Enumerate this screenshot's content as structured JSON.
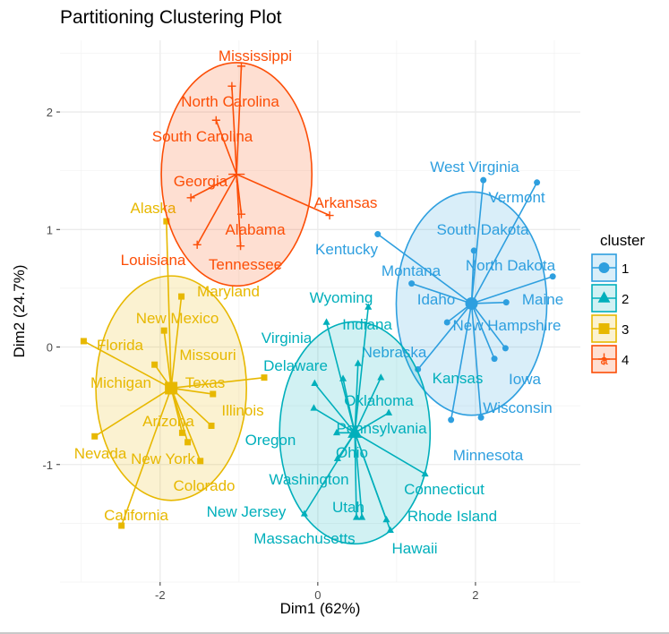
{
  "chart_data": {
    "type": "scatter",
    "title": "Partitioning Clustering Plot",
    "xlabel": "Dim1 (62%)",
    "ylabel": "Dim2 (24.7%)",
    "xlim": [
      -3.27,
      3.33
    ],
    "ylim": [
      -2.0,
      2.61
    ],
    "xticks": [
      -2,
      0,
      2
    ],
    "yticks": [
      -1,
      0,
      1,
      2
    ],
    "xtick_labels": [
      "-2",
      "0",
      "2"
    ],
    "ytick_labels": [
      "-1",
      "0",
      "1",
      "2"
    ],
    "grid": true,
    "legend": {
      "title": "cluster",
      "position": "right",
      "entries": [
        "1",
        "2",
        "3",
        "4"
      ]
    },
    "clusters": [
      {
        "id": "1",
        "color": "#2E9FDF",
        "shape": "circle",
        "center": [
          1.95,
          0.37
        ],
        "ellipse_radii": [
          0.955,
          0.95
        ],
        "points": [
          {
            "name": "West Virginia",
            "x": 2.1,
            "y": 1.42
          },
          {
            "name": "Vermont",
            "x": 2.78,
            "y": 1.4
          },
          {
            "name": "South Dakota",
            "x": 1.98,
            "y": 0.82
          },
          {
            "name": "Kentucky",
            "x": 0.76,
            "y": 0.96
          },
          {
            "name": "North Dakota",
            "x": 2.98,
            "y": 0.6
          },
          {
            "name": "Montana",
            "x": 1.19,
            "y": 0.54
          },
          {
            "name": "Maine",
            "x": 2.39,
            "y": 0.38
          },
          {
            "name": "Idaho",
            "x": 1.64,
            "y": 0.21
          },
          {
            "name": "New Hampshire",
            "x": 2.38,
            "y": -0.01
          },
          {
            "name": "Iowa",
            "x": 2.24,
            "y": -0.1
          },
          {
            "name": "Nebraska",
            "x": 1.27,
            "y": -0.19
          },
          {
            "name": "Wisconsin",
            "x": 2.07,
            "y": -0.6
          },
          {
            "name": "Minnesota",
            "x": 1.69,
            "y": -0.62
          }
        ]
      },
      {
        "id": "2",
        "color": "#00AFBB",
        "shape": "triangle",
        "center": [
          0.47,
          -0.73
        ],
        "ellipse_radii": [
          0.955,
          0.945
        ],
        "points": [
          {
            "name": "Wyoming",
            "x": 0.64,
            "y": 0.34
          },
          {
            "name": "Indiana",
            "x": 0.11,
            "y": 0.21
          },
          {
            "name": "Virginia",
            "x": 0.32,
            "y": -0.27
          },
          {
            "name": "Delaware",
            "x": -0.04,
            "y": -0.31
          },
          {
            "name": "Kansas",
            "x": 0.8,
            "y": -0.26
          },
          {
            "name": "Oklahoma",
            "x": 0.51,
            "y": -0.14
          },
          {
            "name": "Pennsylvania",
            "x": 0.9,
            "y": -0.56
          },
          {
            "name": "Oregon",
            "x": -0.05,
            "y": -0.52
          },
          {
            "name": "Ohio",
            "x": 0.24,
            "y": -0.73
          },
          {
            "name": "Washington",
            "x": 0.25,
            "y": -0.95
          },
          {
            "name": "Connecticut",
            "x": 1.36,
            "y": -1.08
          },
          {
            "name": "New Jersey",
            "x": -0.17,
            "y": -1.42
          },
          {
            "name": "Utah",
            "x": 0.49,
            "y": -1.45
          },
          {
            "name": "Massachusetts",
            "x": 0.56,
            "y": -1.45
          },
          {
            "name": "Rhode Island",
            "x": 0.87,
            "y": -1.47
          },
          {
            "name": "Hawaii",
            "x": 0.92,
            "y": -1.56
          }
        ]
      },
      {
        "id": "3",
        "color": "#E7B800",
        "shape": "square",
        "center": [
          -1.86,
          -0.35
        ],
        "ellipse_radii": [
          0.955,
          0.955
        ],
        "points": [
          {
            "name": "Alaska",
            "x": -1.92,
            "y": 1.07
          },
          {
            "name": "Maryland",
            "x": -1.73,
            "y": 0.43
          },
          {
            "name": "New Mexico",
            "x": -1.95,
            "y": 0.14
          },
          {
            "name": "Florida",
            "x": -2.97,
            "y": 0.05
          },
          {
            "name": "Michigan",
            "x": -2.07,
            "y": -0.15
          },
          {
            "name": "Missouri",
            "x": -0.68,
            "y": -0.26
          },
          {
            "name": "Texas",
            "x": -1.33,
            "y": -0.4
          },
          {
            "name": "Illinois",
            "x": -1.35,
            "y": -0.67
          },
          {
            "name": "Arizona",
            "x": -1.72,
            "y": -0.73
          },
          {
            "name": "New York",
            "x": -1.65,
            "y": -0.81
          },
          {
            "name": "Colorado",
            "x": -1.49,
            "y": -0.97
          },
          {
            "name": "Nevada",
            "x": -2.83,
            "y": -0.76
          },
          {
            "name": "California",
            "x": -2.49,
            "y": -1.52
          }
        ]
      },
      {
        "id": "4",
        "color": "#FC4E07",
        "shape": "cross",
        "center": [
          -1.03,
          1.47
        ],
        "ellipse_radii": [
          0.955,
          0.95
        ],
        "points": [
          {
            "name": "Mississippi",
            "x": -0.97,
            "y": 2.39
          },
          {
            "name": "North Carolina",
            "x": -1.09,
            "y": 2.22
          },
          {
            "name": "South Carolina",
            "x": -1.29,
            "y": 1.93
          },
          {
            "name": "Georgia",
            "x": -1.61,
            "y": 1.27
          },
          {
            "name": "Arkansas",
            "x": 0.15,
            "y": 1.12
          },
          {
            "name": "Alabama",
            "x": -0.97,
            "y": 1.13
          },
          {
            "name": "Louisiana",
            "x": -1.53,
            "y": 0.87
          },
          {
            "name": "Tennessee",
            "x": -0.98,
            "y": 0.86
          }
        ]
      }
    ]
  }
}
